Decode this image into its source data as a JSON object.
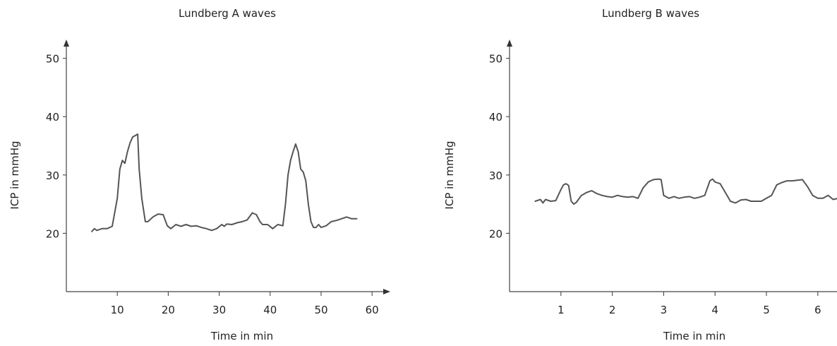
{
  "chart_data": [
    {
      "type": "line",
      "title": "Lundberg A waves",
      "xlabel": "Time in min",
      "ylabel": "ICP in mmHg",
      "xticks": [
        "10",
        "20",
        "30",
        "40",
        "50",
        "60"
      ],
      "yticks": [
        "20",
        "30",
        "40",
        "50"
      ],
      "xlim": [
        0,
        63
      ],
      "ylim": [
        10,
        52
      ],
      "grid": false,
      "series": [
        {
          "x": [
            5,
            5.5,
            6,
            7,
            8,
            9,
            10,
            10.5,
            11,
            11.5,
            12,
            12.5,
            13,
            14,
            14.3,
            14.8,
            15.5,
            16,
            17,
            18,
            19,
            19.8,
            20.5,
            21.5,
            22.5,
            23.5,
            24.5,
            25.5,
            26.5,
            27.5,
            28.5,
            29.5,
            30.5,
            31,
            31.5,
            32.5,
            33.5,
            34.5,
            35.5,
            36.5,
            37.3,
            38,
            38.5,
            39.5,
            40.5,
            41.5,
            42.5,
            43,
            43.5,
            44,
            44.5,
            45,
            45.5,
            46,
            46.5,
            47,
            47.5,
            48,
            48.5,
            49,
            49.5,
            50,
            51,
            52,
            53,
            54,
            55,
            56,
            57
          ],
          "y": [
            20.3,
            20.8,
            20.5,
            20.8,
            20.8,
            21.2,
            26,
            31,
            32.5,
            32,
            34,
            35.5,
            36.5,
            37,
            31,
            26,
            22,
            22,
            22.8,
            23.3,
            23.2,
            21.3,
            20.8,
            21.5,
            21.2,
            21.5,
            21.2,
            21.3,
            21,
            20.8,
            20.5,
            20.8,
            21.5,
            21.2,
            21.6,
            21.5,
            21.8,
            22,
            22.3,
            23.5,
            23.2,
            22,
            21.5,
            21.5,
            20.8,
            21.5,
            21.3,
            25,
            30,
            32.5,
            34,
            35.3,
            34,
            31,
            30.5,
            29,
            25,
            22,
            21,
            21,
            21.5,
            21,
            21.3,
            22,
            22.2,
            22.5,
            22.8,
            22.5,
            22.5
          ]
        }
      ]
    },
    {
      "type": "line",
      "title": "Lundberg B waves",
      "xlabel": "Time in min",
      "ylabel": "ICP in mmHg",
      "xticks": [
        "1",
        "2",
        "3",
        "4",
        "5",
        "6"
      ],
      "yticks": [
        "20",
        "30",
        "40",
        "50"
      ],
      "xlim": [
        0,
        6.4
      ],
      "ylim": [
        10,
        52
      ],
      "grid": false,
      "series": [
        {
          "x": [
            0.5,
            0.6,
            0.65,
            0.7,
            0.8,
            0.9,
            1.0,
            1.05,
            1.1,
            1.15,
            1.2,
            1.25,
            1.3,
            1.4,
            1.5,
            1.6,
            1.7,
            1.8,
            1.9,
            2.0,
            2.1,
            2.2,
            2.3,
            2.4,
            2.5,
            2.6,
            2.7,
            2.8,
            2.9,
            2.95,
            3.0,
            3.1,
            3.2,
            3.3,
            3.4,
            3.5,
            3.6,
            3.7,
            3.8,
            3.9,
            3.95,
            4.0,
            4.1,
            4.2,
            4.3,
            4.4,
            4.5,
            4.6,
            4.7,
            4.8,
            4.9,
            5.0,
            5.1,
            5.2,
            5.3,
            5.4,
            5.5,
            5.6,
            5.7,
            5.8,
            5.9,
            6.0,
            6.1,
            6.2,
            6.3,
            6.4
          ],
          "y": [
            25.5,
            25.8,
            25.2,
            25.8,
            25.5,
            25.6,
            27.5,
            28.3,
            28.5,
            28.2,
            25.5,
            25,
            25.3,
            26.5,
            27,
            27.3,
            26.8,
            26.5,
            26.3,
            26.2,
            26.5,
            26.3,
            26.2,
            26.3,
            26,
            27.8,
            28.8,
            29.2,
            29.3,
            29.2,
            26.5,
            26,
            26.3,
            26,
            26.2,
            26.3,
            26,
            26.2,
            26.5,
            29,
            29.3,
            28.8,
            28.5,
            27,
            25.5,
            25.2,
            25.7,
            25.8,
            25.5,
            25.5,
            25.5,
            26,
            26.5,
            28.3,
            28.7,
            29,
            29,
            29.1,
            29.2,
            28,
            26.5,
            26,
            26,
            26.5,
            25.8,
            26
          ]
        }
      ]
    }
  ]
}
